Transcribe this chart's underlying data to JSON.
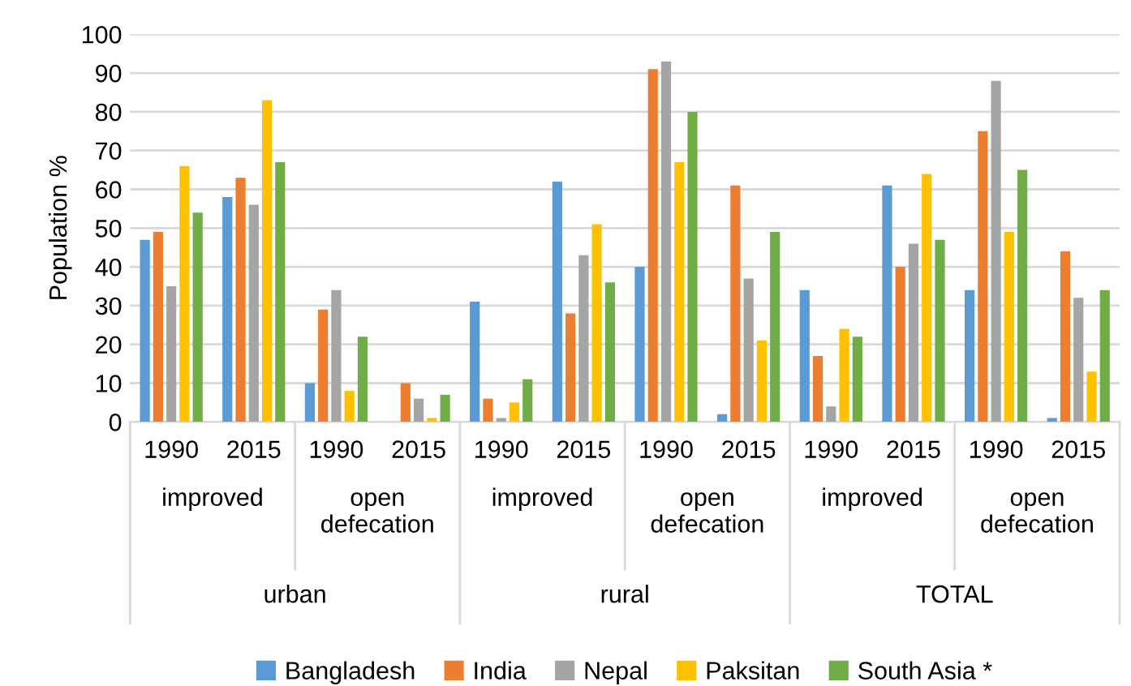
{
  "chart_data": {
    "type": "bar",
    "ylabel": "Population %",
    "categories": [
      "1990",
      "2015",
      "1990",
      "2015",
      "1990",
      "2015",
      "1990",
      "2015",
      "1990",
      "2015",
      "1990",
      "2015"
    ],
    "annotations": [
      "improved",
      "open\ndefecation",
      "improved",
      "open\ndefecation",
      "improved",
      "open\ndefecation",
      "urban",
      "rural",
      "TOTAL"
    ],
    "series": [
      {
        "name": "Bangladesh",
        "color": "#5b9bd5",
        "values": [
          47,
          58,
          10,
          0,
          31,
          62,
          40,
          2,
          34,
          61,
          34,
          1
        ]
      },
      {
        "name": "India",
        "color": "#ed7d31",
        "values": [
          49,
          63,
          29,
          10,
          6,
          28,
          91,
          61,
          17,
          40,
          75,
          44
        ]
      },
      {
        "name": "Nepal",
        "color": "#a5a5a5",
        "values": [
          35,
          56,
          34,
          6,
          1,
          43,
          93,
          37,
          4,
          46,
          88,
          32
        ]
      },
      {
        "name": "Paksitan",
        "color": "#ffc000",
        "values": [
          66,
          83,
          8,
          1,
          5,
          51,
          67,
          21,
          24,
          64,
          49,
          13
        ]
      },
      {
        "name": "South Asia *",
        "color": "#70ad47",
        "values": [
          54,
          67,
          22,
          7,
          11,
          36,
          80,
          49,
          22,
          47,
          65,
          34
        ]
      }
    ],
    "ylim": [
      0,
      100
    ],
    "yticks": [
      0,
      10,
      20,
      30,
      40,
      50,
      60,
      70,
      80,
      90,
      100
    ],
    "grid": "y",
    "legend": "bottom"
  }
}
